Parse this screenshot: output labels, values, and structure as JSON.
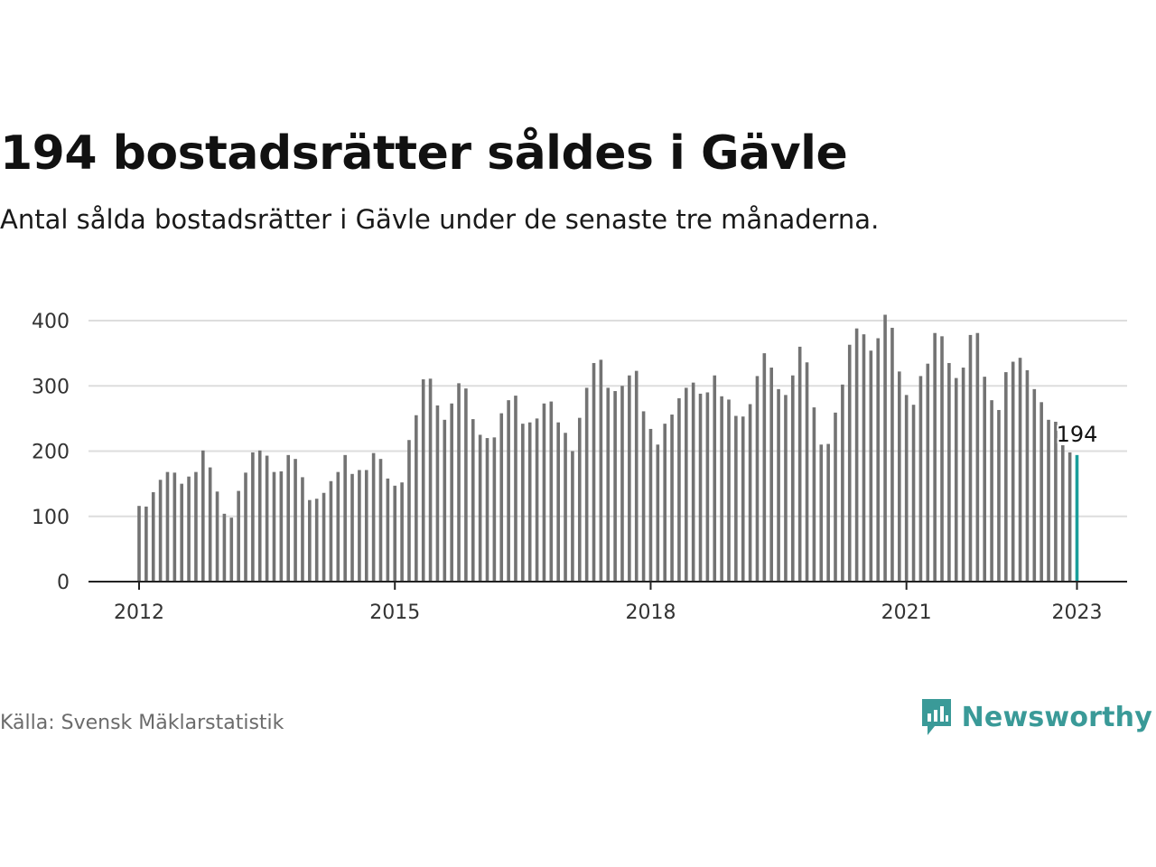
{
  "header": {
    "title": "194 bostadsrätter såldes i Gävle",
    "subtitle": "Antal sålda bostadsrätter i Gävle under de senaste tre månaderna."
  },
  "footer": {
    "source": "Källa: Svensk Mäklarstatistik",
    "brand": "Newsworthy"
  },
  "colors": {
    "bar": "#737373",
    "highlight": "#1a9e9b",
    "grid": "#dddddd",
    "axis": "#222222",
    "brand": "#3a9a98"
  },
  "chart_data": {
    "type": "bar",
    "title": "194 bostadsrätter såldes i Gävle",
    "subtitle": "Antal sålda bostadsrätter i Gävle under de senaste tre månaderna.",
    "xlabel": "",
    "ylabel": "",
    "ylim": [
      0,
      420
    ],
    "yticks": [
      0,
      100,
      200,
      300,
      400
    ],
    "xticks": [
      "2012",
      "2015",
      "2018",
      "2021",
      "2023"
    ],
    "x_start": "2012-01",
    "x_end": "2023-01",
    "grid": true,
    "highlight_label": "194",
    "values": [
      116,
      115,
      137,
      156,
      168,
      167,
      150,
      161,
      168,
      201,
      175,
      138,
      104,
      98,
      139,
      167,
      198,
      201,
      193,
      168,
      169,
      194,
      188,
      160,
      125,
      127,
      136,
      154,
      168,
      194,
      165,
      171,
      171,
      197,
      188,
      158,
      147,
      152,
      217,
      255,
      310,
      311,
      270,
      248,
      273,
      304,
      296,
      249,
      225,
      220,
      221,
      258,
      278,
      285,
      242,
      244,
      250,
      273,
      276,
      244,
      228,
      200,
      251,
      297,
      335,
      340,
      297,
      292,
      300,
      316,
      323,
      261,
      234,
      210,
      242,
      256,
      281,
      297,
      305,
      288,
      290,
      316,
      284,
      279,
      254,
      253,
      272,
      315,
      350,
      328,
      295,
      286,
      316,
      360,
      336,
      267,
      210,
      211,
      259,
      302,
      363,
      388,
      379,
      354,
      373,
      409,
      389,
      322,
      286,
      271,
      315,
      334,
      381,
      376,
      335,
      312,
      328,
      378,
      381,
      314,
      278,
      263,
      321,
      337,
      343,
      324,
      295,
      275,
      248,
      245,
      209,
      198,
      194
    ]
  }
}
